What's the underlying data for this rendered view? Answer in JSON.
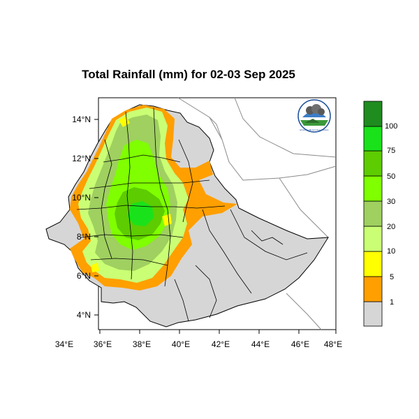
{
  "title": "Total Rainfall (mm) for 02-03 Sep 2025",
  "map": {
    "lon_range": [
      33,
      48.2
    ],
    "lat_range": [
      3.2,
      15
    ],
    "x_ticks": [
      34,
      36,
      38,
      40,
      42,
      44,
      46,
      48
    ],
    "y_ticks": [
      4,
      6,
      8,
      10,
      12,
      14
    ],
    "x_tick_labels": [
      "34°E",
      "36°E",
      "38°E",
      "40°E",
      "42°E",
      "44°E",
      "46°E",
      "48°E"
    ],
    "y_tick_labels": [
      "4°N",
      "6°N",
      "8°N",
      "10°N",
      "12°N",
      "14°N"
    ]
  },
  "legend": {
    "labels": [
      "1",
      "5",
      "10",
      "20",
      "30",
      "50",
      "75",
      "100"
    ],
    "colors": [
      "#d6d6d6",
      "#ff9f00",
      "#ffff00",
      "#caff75",
      "#9fd060",
      "#7fff00",
      "#5dcc00",
      "#1ae21a",
      "#1f8c1f"
    ]
  },
  "logo": {
    "caption": "Ethiopian Meteorology Institute"
  }
}
